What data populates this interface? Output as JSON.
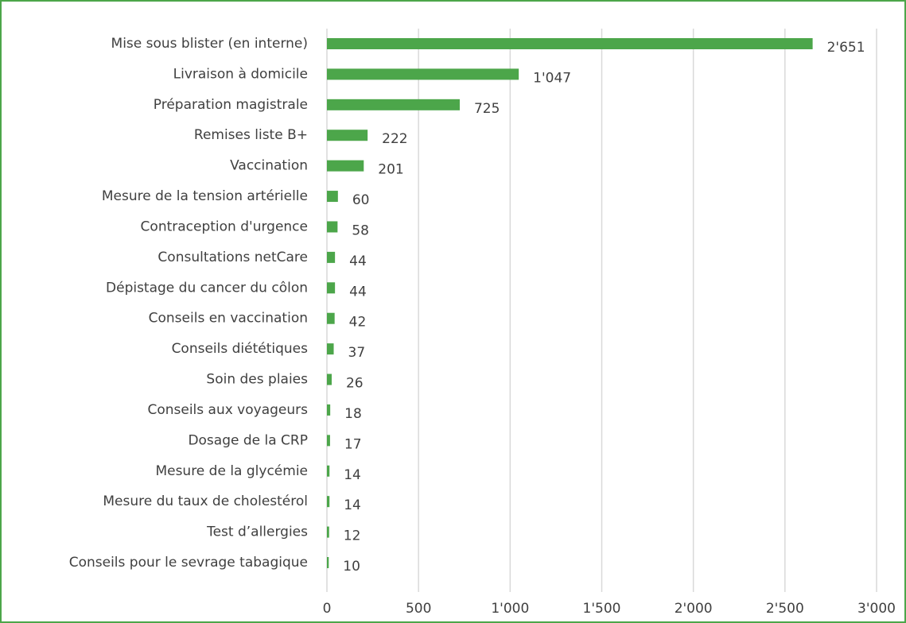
{
  "chart_data": {
    "type": "bar",
    "orientation": "horizontal",
    "categories": [
      "Mise sous blister (en interne)",
      "Livraison à domicile",
      "Préparation magistrale",
      "Remises liste B+",
      "Vaccination",
      "Mesure de la tension artérielle",
      "Contraception d'urgence",
      "Consultations netCare",
      "Dépistage du cancer du côlon",
      "Conseils en vaccination",
      "Conseils diététiques",
      "Soin des plaies",
      "Conseils aux voyageurs",
      "Dosage de la CRP",
      "Mesure de la glycémie",
      "Mesure du taux de cholestérol",
      "Test d’allergies",
      "Conseils pour le sevrage tabagique"
    ],
    "values": [
      2651,
      1047,
      725,
      222,
      201,
      60,
      58,
      44,
      44,
      42,
      37,
      26,
      18,
      17,
      14,
      14,
      12,
      10
    ],
    "value_labels": [
      "2'651",
      "1'047",
      "725",
      "222",
      "201",
      "60",
      "58",
      "44",
      "44",
      "42",
      "37",
      "26",
      "18",
      "17",
      "14",
      "14",
      "12",
      "10"
    ],
    "color": "#4ca64a",
    "xlim": [
      0,
      3000
    ],
    "xticks": [
      0,
      500,
      {
        "value": 1000,
        "label": "1'000"
      },
      {
        "value": 1500,
        "label": "1'500"
      },
      {
        "value": 2000,
        "label": "2'000"
      },
      {
        "value": 2500,
        "label": "2'500"
      },
      {
        "value": 3000,
        "label": "3'000"
      }
    ],
    "grid": true
  }
}
